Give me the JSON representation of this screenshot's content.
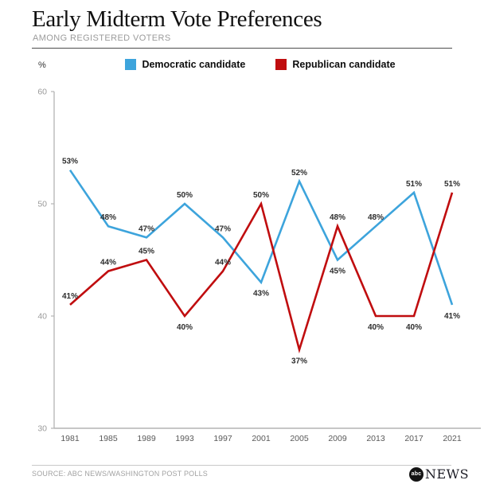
{
  "header": {
    "title": "Early Midterm Vote Preferences",
    "subtitle": "AMONG REGISTERED VOTERS"
  },
  "legend": [
    {
      "label": "Democratic candidate",
      "color": "#3da4dc"
    },
    {
      "label": "Republican candidate",
      "color": "#c00d0f"
    }
  ],
  "chart_data": {
    "type": "line",
    "title": "Early Midterm Vote Preferences",
    "subtitle": "AMONG REGISTERED VOTERS",
    "unit": "%",
    "x": [
      1981,
      1985,
      1989,
      1993,
      1997,
      2001,
      2005,
      2009,
      2013,
      2017,
      2021
    ],
    "series": [
      {
        "name": "Democratic candidate",
        "slug": "democratic",
        "color": "#3da4dc",
        "values": [
          53,
          48,
          47,
          50,
          47,
          43,
          52,
          45,
          48,
          51,
          41
        ],
        "label_side": [
          "above",
          "above",
          "above",
          "above",
          "above",
          "below",
          "above",
          "below",
          "above",
          "above",
          "below"
        ]
      },
      {
        "name": "Republican candidate",
        "slug": "republican",
        "color": "#c00d0f",
        "values": [
          41,
          44,
          45,
          40,
          44,
          50,
          37,
          48,
          40,
          40,
          51
        ],
        "label_side": [
          "above",
          "above",
          "above",
          "below",
          "above",
          "above",
          "below",
          "above",
          "below",
          "below",
          "above"
        ]
      }
    ],
    "ylim": [
      30,
      60
    ],
    "yticks": [
      60,
      50,
      40,
      30
    ],
    "grid": false,
    "legend_position": "top",
    "axis_color": "#b3b3b3",
    "ytick_color": "#9a9a9a",
    "xtick_color": "#595959",
    "point_label_color": "#2e2e2e"
  },
  "footer": {
    "source": "SOURCE: ABC NEWS/WASHINGTON POST POLLS",
    "logo_circle_text": "abc",
    "logo_wordmark": "NEWS"
  }
}
